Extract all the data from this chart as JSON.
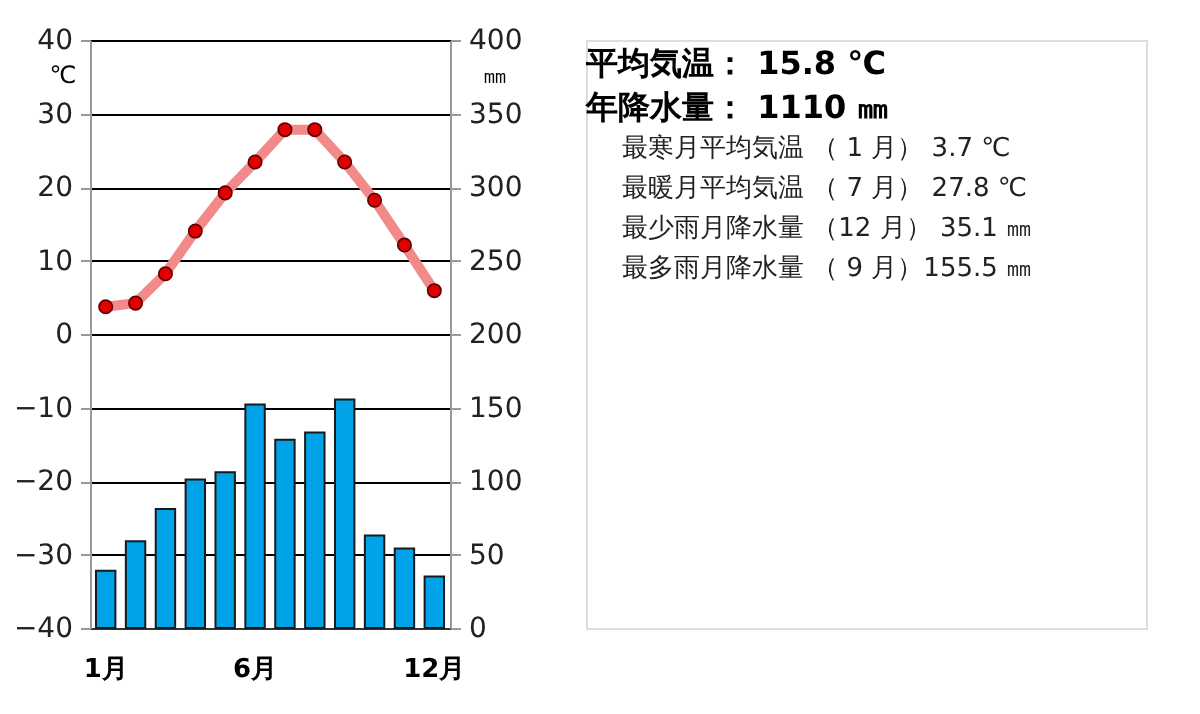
{
  "chart_data": {
    "type": "bar",
    "categories": [
      "1月",
      null,
      null,
      null,
      null,
      "6月",
      null,
      null,
      null,
      null,
      null,
      "12月"
    ],
    "series": [
      {
        "axis": "y2",
        "color": "#00a2e8",
        "values": [
          39,
          59,
          81,
          101,
          106,
          152,
          128,
          133,
          155.5,
          63,
          54,
          35.1
        ]
      },
      {
        "type": "line",
        "axis": "y",
        "color": "#f28a8a",
        "marker": "circle",
        "values": [
          3.7,
          4.2,
          8.2,
          14.0,
          19.2,
          23.4,
          27.8,
          27.8,
          23.4,
          18.2,
          12.1,
          5.9
        ]
      }
    ],
    "ylabel": "℃",
    "y2label": "㎜",
    "ylim": [
      -40,
      40
    ],
    "yticks": [
      -40,
      -30,
      -20,
      -10,
      0,
      10,
      20,
      30,
      40
    ],
    "y2lim": [
      0,
      400
    ],
    "y2ticks": [
      0,
      50,
      100,
      150,
      200,
      250,
      300,
      350,
      400
    ],
    "grid": "y",
    "legend": false,
    "annotations": [
      "平均気温： 15.8 ℃",
      "年降水量： 1110 ㎜",
      "最寒月平均気温 （ 1 月）   3.7 ℃",
      "最暖月平均気温 （ 7 月）  27.8 ℃",
      "最少雨月降水量 （12 月）  35.1 ㎜",
      "最多雨月降水量 （ 9 月）155.5 ㎜"
    ]
  }
}
